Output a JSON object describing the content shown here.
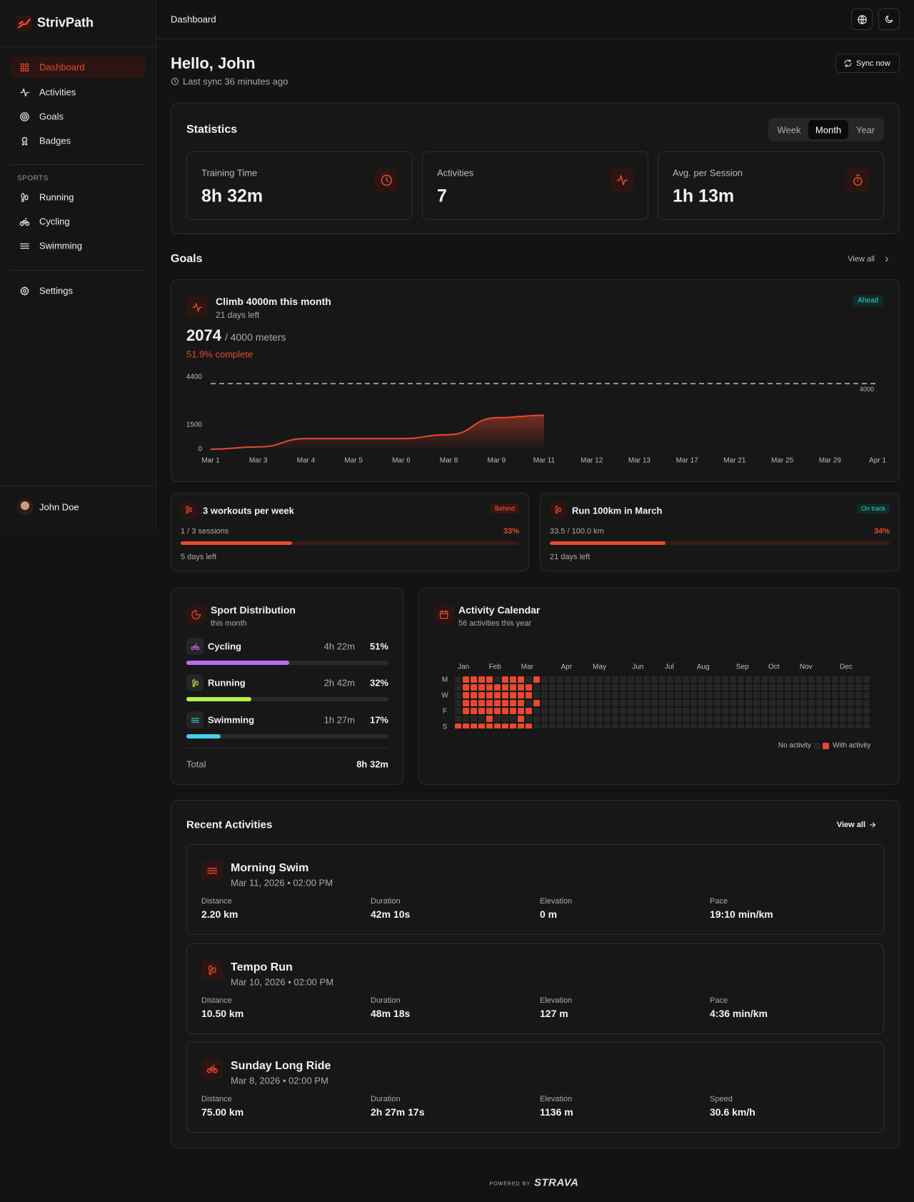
{
  "sidebar": {
    "brand": "StrivPath",
    "nav": [
      "Dashboard",
      "Activities",
      "Goals",
      "Badges"
    ],
    "sports_heading": "SPORTS",
    "sports": [
      "Running",
      "Cycling",
      "Swimming"
    ],
    "settings": "Settings",
    "user": "John Doe"
  },
  "topbar": {
    "title": "Dashboard"
  },
  "header": {
    "greeting": "Hello, John",
    "last_sync": "Last sync 36 minutes ago",
    "sync_button": "Sync now"
  },
  "statistics": {
    "title": "Statistics",
    "periods": [
      "Week",
      "Month",
      "Year"
    ],
    "cards": [
      {
        "label": "Training Time",
        "value": "8h 32m"
      },
      {
        "label": "Activities",
        "value": "7"
      },
      {
        "label": "Avg. per Session",
        "value": "1h 13m"
      }
    ]
  },
  "goals": {
    "title": "Goals",
    "view_all": "View all",
    "main": {
      "title": "Climb 4000m this month",
      "subtitle": "21 days left",
      "badge": "Ahead",
      "current": "2074",
      "target": "/ 4000 meters",
      "progress": "51.9% complete"
    },
    "small": [
      {
        "title": "3 workouts per week",
        "badge": "Behind",
        "progress_text": "1 / 3 sessions",
        "percent": 33,
        "percent_label": "33%",
        "footer": "5 days left"
      },
      {
        "title": "Run 100km in March",
        "badge": "On track",
        "progress_text": "33.5 / 100.0 km",
        "percent": 34,
        "percent_label": "34%",
        "footer": "21 days left"
      }
    ]
  },
  "chart_data": {
    "type": "area",
    "categories": [
      "Mar 1",
      "Mar 3",
      "Mar 4",
      "Mar 5",
      "Mar 6",
      "Mar 8",
      "Mar 9",
      "Mar 11",
      "Mar 12",
      "Mar 13",
      "Mar 17",
      "Mar 21",
      "Mar 25",
      "Mar 29",
      "Apr 1"
    ],
    "values": [
      0,
      140,
      650,
      650,
      650,
      890,
      1920,
      2074,
      null,
      null,
      null,
      null,
      null,
      null,
      null
    ],
    "color": "#e8492e",
    "goal": 4000,
    "ylim": [
      0,
      4400
    ],
    "yticks": [
      0,
      1500,
      4400
    ],
    "grid": false
  },
  "sport_distribution": {
    "title": "Sport Distribution",
    "subtitle": "this month",
    "sports": [
      {
        "name": "Cycling",
        "time": "4h 22m",
        "percent": 51,
        "percent_label": "51%",
        "color": "#b66cf2"
      },
      {
        "name": "Running",
        "time": "2h 42m",
        "percent": 32,
        "percent_label": "32%",
        "color": "#b6f04a"
      },
      {
        "name": "Swimming",
        "time": "1h 27m",
        "percent": 17,
        "percent_label": "17%",
        "color": "#3fd3ea"
      }
    ],
    "total_label": "Total",
    "total": "8h 32m"
  },
  "calendar": {
    "title": "Activity Calendar",
    "subtitle": "56 activities this year",
    "months": [
      "Jan",
      "Feb",
      "Mar",
      "Apr",
      "May",
      "Jun",
      "Jul",
      "Aug",
      "Sep",
      "Oct",
      "Nov",
      "Dec"
    ],
    "day_labels": [
      "M",
      "W",
      "F",
      "S"
    ],
    "weeks": [
      [
        0,
        0,
        0,
        0,
        0,
        0,
        1
      ],
      [
        1,
        1,
        1,
        1,
        1,
        0,
        1
      ],
      [
        1,
        1,
        1,
        1,
        1,
        0,
        1
      ],
      [
        1,
        1,
        1,
        1,
        1,
        0,
        1
      ],
      [
        1,
        1,
        1,
        1,
        1,
        1,
        1
      ],
      [
        0,
        1,
        1,
        1,
        1,
        0,
        1
      ],
      [
        1,
        1,
        1,
        1,
        1,
        0,
        1
      ],
      [
        1,
        1,
        1,
        1,
        1,
        0,
        1
      ],
      [
        1,
        1,
        1,
        1,
        1,
        1,
        1
      ],
      [
        0,
        1,
        1,
        0,
        1,
        0,
        1
      ],
      [
        1,
        0,
        0,
        1,
        0,
        0,
        0
      ],
      [
        0,
        0,
        0,
        0,
        0,
        0,
        0
      ],
      [
        0,
        0,
        0,
        0,
        0,
        0,
        0
      ],
      [
        0,
        0,
        0,
        0,
        0,
        0,
        0
      ],
      [
        0,
        0,
        0,
        0,
        0,
        0,
        0
      ],
      [
        0,
        0,
        0,
        0,
        0,
        0,
        0
      ],
      [
        0,
        0,
        0,
        0,
        0,
        0,
        0
      ],
      [
        0,
        0,
        0,
        0,
        0,
        0,
        0
      ],
      [
        0,
        0,
        0,
        0,
        0,
        0,
        0
      ],
      [
        0,
        0,
        0,
        0,
        0,
        0,
        0
      ],
      [
        0,
        0,
        0,
        0,
        0,
        0,
        0
      ],
      [
        0,
        0,
        0,
        0,
        0,
        0,
        0
      ],
      [
        0,
        0,
        0,
        0,
        0,
        0,
        0
      ],
      [
        0,
        0,
        0,
        0,
        0,
        0,
        0
      ],
      [
        0,
        0,
        0,
        0,
        0,
        0,
        0
      ],
      [
        0,
        0,
        0,
        0,
        0,
        0,
        0
      ],
      [
        0,
        0,
        0,
        0,
        0,
        0,
        0
      ],
      [
        0,
        0,
        0,
        0,
        0,
        0,
        0
      ],
      [
        0,
        0,
        0,
        0,
        0,
        0,
        0
      ],
      [
        0,
        0,
        0,
        0,
        0,
        0,
        0
      ],
      [
        0,
        0,
        0,
        0,
        0,
        0,
        0
      ],
      [
        0,
        0,
        0,
        0,
        0,
        0,
        0
      ],
      [
        0,
        0,
        0,
        0,
        0,
        0,
        0
      ],
      [
        0,
        0,
        0,
        0,
        0,
        0,
        0
      ],
      [
        0,
        0,
        0,
        0,
        0,
        0,
        0
      ],
      [
        0,
        0,
        0,
        0,
        0,
        0,
        0
      ],
      [
        0,
        0,
        0,
        0,
        0,
        0,
        0
      ],
      [
        0,
        0,
        0,
        0,
        0,
        0,
        0
      ],
      [
        0,
        0,
        0,
        0,
        0,
        0,
        0
      ],
      [
        0,
        0,
        0,
        0,
        0,
        0,
        0
      ],
      [
        0,
        0,
        0,
        0,
        0,
        0,
        0
      ],
      [
        0,
        0,
        0,
        0,
        0,
        0,
        0
      ],
      [
        0,
        0,
        0,
        0,
        0,
        0,
        0
      ],
      [
        0,
        0,
        0,
        0,
        0,
        0,
        0
      ],
      [
        0,
        0,
        0,
        0,
        0,
        0,
        0
      ],
      [
        0,
        0,
        0,
        0,
        0,
        0,
        0
      ],
      [
        0,
        0,
        0,
        0,
        0,
        0,
        0
      ],
      [
        0,
        0,
        0,
        0,
        0,
        0,
        0
      ],
      [
        0,
        0,
        0,
        0,
        0,
        0,
        0
      ],
      [
        0,
        0,
        0,
        0,
        0,
        0,
        0
      ],
      [
        0,
        0,
        0,
        0,
        0,
        0,
        0
      ],
      [
        0,
        0,
        0,
        0,
        0,
        0,
        0
      ],
      [
        0,
        0,
        0,
        0,
        0,
        0,
        0
      ]
    ],
    "legend_empty": "No activity",
    "legend_active": "With activity"
  },
  "recent": {
    "title": "Recent Activities",
    "view_all": "View all",
    "activities": [
      {
        "name": "Morning Swim",
        "date": "Mar 11, 2026 • 02:00 PM",
        "stats": [
          {
            "label": "Distance",
            "value": "2.20 km"
          },
          {
            "label": "Duration",
            "value": "42m 10s"
          },
          {
            "label": "Elevation",
            "value": "0 m"
          },
          {
            "label": "Pace",
            "value": "19:10 min/km"
          }
        ]
      },
      {
        "name": "Tempo Run",
        "date": "Mar 10, 2026 • 02:00 PM",
        "stats": [
          {
            "label": "Distance",
            "value": "10.50 km"
          },
          {
            "label": "Duration",
            "value": "48m 18s"
          },
          {
            "label": "Elevation",
            "value": "127 m"
          },
          {
            "label": "Pace",
            "value": "4:36 min/km"
          }
        ]
      },
      {
        "name": "Sunday Long Ride",
        "date": "Mar 8, 2026 • 02:00 PM",
        "stats": [
          {
            "label": "Distance",
            "value": "75.00 km"
          },
          {
            "label": "Duration",
            "value": "2h 27m 17s"
          },
          {
            "label": "Elevation",
            "value": "1136 m"
          },
          {
            "label": "Speed",
            "value": "30.6 km/h"
          }
        ]
      }
    ]
  },
  "footer": {
    "powered_by": "POWERED BY",
    "brand": "STRAVA"
  }
}
